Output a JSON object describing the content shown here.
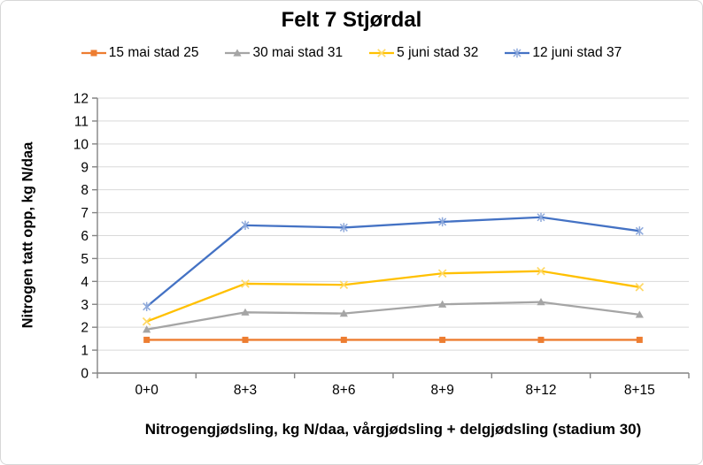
{
  "chart_data": {
    "type": "line",
    "title": "Felt 7 Stjørdal",
    "xlabel": "Nitrogengjødsling, kg N/daa, vårgjødsling + delgjødsling (stadium 30)",
    "ylabel": "Nitrogen tatt opp, kg N/daa",
    "categories": [
      "0+0",
      "8+3",
      "8+6",
      "8+9",
      "8+12",
      "8+15"
    ],
    "ylim": [
      0,
      12
    ],
    "yticks": [
      0,
      1,
      2,
      3,
      4,
      5,
      6,
      7,
      8,
      9,
      10,
      11,
      12
    ],
    "grid": "horizontal",
    "legend_position": "top",
    "series": [
      {
        "name": "15 mai stad 25",
        "color": "#ED7D31",
        "marker": "square",
        "marker_color": "#ED7D31",
        "values": [
          1.45,
          1.45,
          1.45,
          1.45,
          1.45,
          1.45
        ]
      },
      {
        "name": "30 mai stad 31",
        "color": "#A5A5A5",
        "marker": "triangle",
        "marker_color": "#A5A5A5",
        "values": [
          1.9,
          2.65,
          2.6,
          3.0,
          3.1,
          2.55
        ]
      },
      {
        "name": "5 juni stad 32",
        "color": "#FFC000",
        "marker": "x",
        "marker_color": "#FFD966",
        "values": [
          2.25,
          3.9,
          3.85,
          4.35,
          4.45,
          3.75
        ]
      },
      {
        "name": "12 juni stad 37",
        "color": "#4472C4",
        "marker": "asterisk",
        "marker_color": "#8FAADC",
        "values": [
          2.9,
          6.45,
          6.35,
          6.6,
          6.8,
          6.2
        ]
      }
    ],
    "colors": {
      "gridline": "#D9D9D9",
      "axis": "#848484",
      "text": "#000000"
    }
  }
}
